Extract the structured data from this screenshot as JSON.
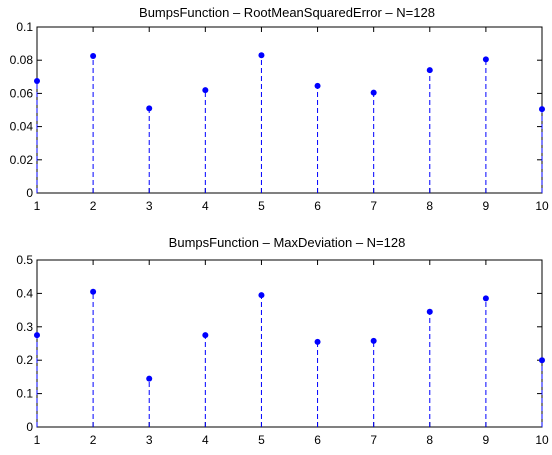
{
  "chart_data": [
    {
      "type": "scatter",
      "style": "stem",
      "title": "BumpsFunction – RootMeanSquaredError – N=128",
      "xlabel": "",
      "ylabel": "",
      "xlim": [
        1,
        10
      ],
      "ylim": [
        0,
        0.1
      ],
      "xticks": [
        "1",
        "2",
        "3",
        "4",
        "5",
        "6",
        "7",
        "8",
        "9",
        "10"
      ],
      "yticks": [
        "0",
        "0.02",
        "0.04",
        "0.06",
        "0.08",
        "0.1"
      ],
      "x": [
        1,
        2,
        3,
        4,
        5,
        6,
        7,
        8,
        9,
        10
      ],
      "values": [
        0.0675,
        0.0825,
        0.051,
        0.062,
        0.083,
        0.0645,
        0.0605,
        0.074,
        0.0805,
        0.0505
      ],
      "color": "#0000ff",
      "grid": false
    },
    {
      "type": "scatter",
      "style": "stem",
      "title": "BumpsFunction – MaxDeviation – N=128",
      "xlabel": "",
      "ylabel": "",
      "xlim": [
        1,
        10
      ],
      "ylim": [
        0,
        0.5
      ],
      "xticks": [
        "1",
        "2",
        "3",
        "4",
        "5",
        "6",
        "7",
        "8",
        "9",
        "10"
      ],
      "yticks": [
        "0",
        "0.1",
        "0.2",
        "0.3",
        "0.4",
        "0.5"
      ],
      "x": [
        1,
        2,
        3,
        4,
        5,
        6,
        7,
        8,
        9,
        10
      ],
      "values": [
        0.275,
        0.405,
        0.145,
        0.275,
        0.395,
        0.255,
        0.258,
        0.345,
        0.385,
        0.2
      ],
      "color": "#0000ff",
      "grid": false
    }
  ]
}
